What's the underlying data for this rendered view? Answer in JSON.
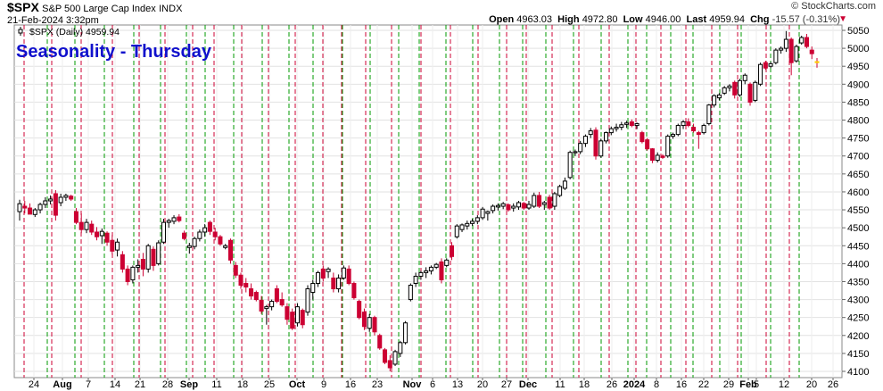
{
  "header": {
    "symbol": "$SPX",
    "description": "S&P 500 Large Cap Index",
    "exchange": "INDX",
    "brand": "© StockCharts.com",
    "datetime": "21-Feb-2024 3:32pm",
    "open_label": "Open",
    "open_value": "4963.03",
    "high_label": "High",
    "high_value": "4972.80",
    "low_label": "Low",
    "low_value": "4946.00",
    "last_label": "Last",
    "last_value": "4959.94",
    "chg_label": "Chg",
    "chg_value": "-15.57 (-0.31%)"
  },
  "chart_data": {
    "type": "candlestick",
    "title": "Seasonality - Thursday",
    "series_label": "$SPX (Daily) 4959.94",
    "y_ticks": [
      4100,
      4150,
      4200,
      4250,
      4300,
      4350,
      4400,
      4450,
      4500,
      4550,
      4600,
      4650,
      4700,
      4750,
      4800,
      4850,
      4900,
      4950,
      5000,
      5050
    ],
    "ylim": [
      4090,
      5065
    ],
    "colors": {
      "up": "#000000",
      "down": "#cc0033",
      "title": "#1010cc",
      "thursday_line": "#cc0033",
      "monday_line": "#009900",
      "last_marker": "#ffcc00"
    },
    "x_labels": [
      {
        "label": "24",
        "bold": false
      },
      {
        "label": "Aug",
        "bold": true
      },
      {
        "label": "7",
        "bold": false
      },
      {
        "label": "14",
        "bold": false
      },
      {
        "label": "21",
        "bold": false
      },
      {
        "label": "28",
        "bold": false
      },
      {
        "label": "Sep",
        "bold": true
      },
      {
        "label": "11",
        "bold": false
      },
      {
        "label": "18",
        "bold": false
      },
      {
        "label": "25",
        "bold": false
      },
      {
        "label": "Oct",
        "bold": true
      },
      {
        "label": "9",
        "bold": false
      },
      {
        "label": "16",
        "bold": false
      },
      {
        "label": "23",
        "bold": false
      },
      {
        "label": "Nov",
        "bold": true
      },
      {
        "label": "6",
        "bold": false
      },
      {
        "label": "13",
        "bold": false
      },
      {
        "label": "20",
        "bold": false
      },
      {
        "label": "27",
        "bold": false
      },
      {
        "label": "Dec",
        "bold": true
      },
      {
        "label": "11",
        "bold": false
      },
      {
        "label": "18",
        "bold": false
      },
      {
        "label": "26",
        "bold": false
      },
      {
        "label": "2024",
        "bold": true
      },
      {
        "label": "8",
        "bold": false
      },
      {
        "label": "16",
        "bold": false
      },
      {
        "label": "22",
        "bold": false
      },
      {
        "label": "29",
        "bold": false
      },
      {
        "label": "Feb",
        "bold": true
      },
      {
        "label": "5",
        "bold": false
      },
      {
        "label": "12",
        "bold": false
      },
      {
        "label": "20",
        "bold": false
      },
      {
        "label": "26",
        "bold": false
      }
    ],
    "candles": [
      {
        "o": 4545,
        "h": 4578,
        "l": 4520,
        "c": 4567
      },
      {
        "o": 4560,
        "h": 4575,
        "l": 4540,
        "c": 4555
      },
      {
        "o": 4555,
        "h": 4568,
        "l": 4540,
        "c": 4538
      },
      {
        "o": 4537,
        "h": 4555,
        "l": 4530,
        "c": 4550
      },
      {
        "o": 4550,
        "h": 4570,
        "l": 4540,
        "c": 4565
      },
      {
        "o": 4565,
        "h": 4585,
        "l": 4555,
        "c": 4575
      },
      {
        "o": 4575,
        "h": 4590,
        "l": 4565,
        "c": 4580
      },
      {
        "o": 4595,
        "h": 4605,
        "l": 4520,
        "c": 4535
      },
      {
        "o": 4570,
        "h": 4595,
        "l": 4560,
        "c": 4585
      },
      {
        "o": 4585,
        "h": 4595,
        "l": 4575,
        "c": 4590
      },
      {
        "o": 4588,
        "h": 4592,
        "l": 4575,
        "c": 4580
      },
      {
        "o": 4545,
        "h": 4555,
        "l": 4510,
        "c": 4515
      },
      {
        "o": 4515,
        "h": 4540,
        "l": 4485,
        "c": 4495
      },
      {
        "o": 4495,
        "h": 4525,
        "l": 4485,
        "c": 4515
      },
      {
        "o": 4510,
        "h": 4520,
        "l": 4480,
        "c": 4488
      },
      {
        "o": 4488,
        "h": 4502,
        "l": 4465,
        "c": 4475
      },
      {
        "o": 4478,
        "h": 4498,
        "l": 4455,
        "c": 4490
      },
      {
        "o": 4485,
        "h": 4490,
        "l": 4450,
        "c": 4460
      },
      {
        "o": 4465,
        "h": 4480,
        "l": 4425,
        "c": 4435
      },
      {
        "o": 4438,
        "h": 4470,
        "l": 4420,
        "c": 4460
      },
      {
        "o": 4425,
        "h": 4435,
        "l": 4375,
        "c": 4385
      },
      {
        "o": 4385,
        "h": 4395,
        "l": 4340,
        "c": 4350
      },
      {
        "o": 4355,
        "h": 4395,
        "l": 4345,
        "c": 4390
      },
      {
        "o": 4390,
        "h": 4412,
        "l": 4375,
        "c": 4395
      },
      {
        "o": 4412,
        "h": 4430,
        "l": 4365,
        "c": 4385
      },
      {
        "o": 4385,
        "h": 4455,
        "l": 4375,
        "c": 4450
      },
      {
        "o": 4440,
        "h": 4448,
        "l": 4380,
        "c": 4395
      },
      {
        "o": 4400,
        "h": 4465,
        "l": 4395,
        "c": 4458
      },
      {
        "o": 4460,
        "h": 4525,
        "l": 4455,
        "c": 4515
      },
      {
        "o": 4515,
        "h": 4525,
        "l": 4500,
        "c": 4520
      },
      {
        "o": 4518,
        "h": 4535,
        "l": 4510,
        "c": 4528
      },
      {
        "o": 4530,
        "h": 4538,
        "l": 4515,
        "c": 4520
      },
      {
        "o": 4485,
        "h": 4492,
        "l": 4465,
        "c": 4470
      },
      {
        "o": 4445,
        "h": 4458,
        "l": 4428,
        "c": 4450
      },
      {
        "o": 4448,
        "h": 4475,
        "l": 4440,
        "c": 4470
      },
      {
        "o": 4470,
        "h": 4495,
        "l": 4462,
        "c": 4488
      },
      {
        "o": 4488,
        "h": 4510,
        "l": 4475,
        "c": 4500
      },
      {
        "o": 4515,
        "h": 4520,
        "l": 4480,
        "c": 4490
      },
      {
        "o": 4488,
        "h": 4500,
        "l": 4465,
        "c": 4475
      },
      {
        "o": 4475,
        "h": 4480,
        "l": 4450,
        "c": 4455
      },
      {
        "o": 4445,
        "h": 4455,
        "l": 4440,
        "c": 4450
      },
      {
        "o": 4465,
        "h": 4470,
        "l": 4400,
        "c": 4410
      },
      {
        "o": 4395,
        "h": 4405,
        "l": 4360,
        "c": 4368
      },
      {
        "o": 4368,
        "h": 4375,
        "l": 4330,
        "c": 4340
      },
      {
        "o": 4345,
        "h": 4360,
        "l": 4320,
        "c": 4335
      },
      {
        "o": 4330,
        "h": 4345,
        "l": 4300,
        "c": 4310
      },
      {
        "o": 4320,
        "h": 4325,
        "l": 4295,
        "c": 4300
      },
      {
        "o": 4298,
        "h": 4310,
        "l": 4260,
        "c": 4268
      },
      {
        "o": 4275,
        "h": 4285,
        "l": 4230,
        "c": 4280
      },
      {
        "o": 4280,
        "h": 4300,
        "l": 4270,
        "c": 4295
      },
      {
        "o": 4330,
        "h": 4340,
        "l": 4290,
        "c": 4295
      },
      {
        "o": 4300,
        "h": 4320,
        "l": 4280,
        "c": 4285
      },
      {
        "o": 4280,
        "h": 4290,
        "l": 4230,
        "c": 4245
      },
      {
        "o": 4265,
        "h": 4275,
        "l": 4215,
        "c": 4220
      },
      {
        "o": 4235,
        "h": 4290,
        "l": 4225,
        "c": 4280
      },
      {
        "o": 4270,
        "h": 4275,
        "l": 4220,
        "c": 4230
      },
      {
        "o": 4265,
        "h": 4340,
        "l": 4255,
        "c": 4330
      },
      {
        "o": 4320,
        "h": 4355,
        "l": 4300,
        "c": 4345
      },
      {
        "o": 4345,
        "h": 4380,
        "l": 4335,
        "c": 4375
      },
      {
        "o": 4385,
        "h": 4395,
        "l": 4350,
        "c": 4360
      },
      {
        "o": 4378,
        "h": 4390,
        "l": 4360,
        "c": 4385
      },
      {
        "o": 4360,
        "h": 4375,
        "l": 4320,
        "c": 4330
      },
      {
        "o": 4330,
        "h": 4370,
        "l": 4320,
        "c": 4360
      },
      {
        "o": 4360,
        "h": 4395,
        "l": 4355,
        "c": 4388
      },
      {
        "o": 4385,
        "h": 4395,
        "l": 4340,
        "c": 4345
      },
      {
        "o": 4345,
        "h": 4350,
        "l": 4300,
        "c": 4305
      },
      {
        "o": 4295,
        "h": 4300,
        "l": 4245,
        "c": 4250
      },
      {
        "o": 4265,
        "h": 4275,
        "l": 4215,
        "c": 4225
      },
      {
        "o": 4220,
        "h": 4260,
        "l": 4210,
        "c": 4250
      },
      {
        "o": 4250,
        "h": 4255,
        "l": 4200,
        "c": 4210
      },
      {
        "o": 4200,
        "h": 4205,
        "l": 4160,
        "c": 4165
      },
      {
        "o": 4160,
        "h": 4165,
        "l": 4120,
        "c": 4125
      },
      {
        "o": 4130,
        "h": 4145,
        "l": 4100,
        "c": 4110
      },
      {
        "o": 4120,
        "h": 4160,
        "l": 4115,
        "c": 4155
      },
      {
        "o": 4150,
        "h": 4185,
        "l": 4140,
        "c": 4180
      },
      {
        "o": 4180,
        "h": 4240,
        "l": 4175,
        "c": 4235
      },
      {
        "o": 4300,
        "h": 4345,
        "l": 4295,
        "c": 4340
      },
      {
        "o": 4345,
        "h": 4375,
        "l": 4335,
        "c": 4365
      },
      {
        "o": 4365,
        "h": 4380,
        "l": 4355,
        "c": 4375
      },
      {
        "o": 4375,
        "h": 4390,
        "l": 4360,
        "c": 4380
      },
      {
        "o": 4380,
        "h": 4395,
        "l": 4370,
        "c": 4390
      },
      {
        "o": 4390,
        "h": 4402,
        "l": 4385,
        "c": 4398
      },
      {
        "o": 4405,
        "h": 4415,
        "l": 4345,
        "c": 4355
      },
      {
        "o": 4395,
        "h": 4415,
        "l": 4390,
        "c": 4410
      },
      {
        "o": 4450,
        "h": 4460,
        "l": 4410,
        "c": 4420
      },
      {
        "o": 4475,
        "h": 4510,
        "l": 4470,
        "c": 4505
      },
      {
        "o": 4495,
        "h": 4512,
        "l": 4488,
        "c": 4508
      },
      {
        "o": 4505,
        "h": 4520,
        "l": 4495,
        "c": 4512
      },
      {
        "o": 4512,
        "h": 4525,
        "l": 4505,
        "c": 4518
      },
      {
        "o": 4518,
        "h": 4535,
        "l": 4510,
        "c": 4528
      },
      {
        "o": 4528,
        "h": 4558,
        "l": 4522,
        "c": 4552
      },
      {
        "o": 4540,
        "h": 4548,
        "l": 4520,
        "c": 4545
      },
      {
        "o": 4548,
        "h": 4565,
        "l": 4540,
        "c": 4560
      },
      {
        "o": 4558,
        "h": 4568,
        "l": 4548,
        "c": 4562
      },
      {
        "o": 4560,
        "h": 4572,
        "l": 4552,
        "c": 4567
      },
      {
        "o": 4564,
        "h": 4568,
        "l": 4545,
        "c": 4550
      },
      {
        "o": 4555,
        "h": 4568,
        "l": 4545,
        "c": 4560
      },
      {
        "o": 4558,
        "h": 4575,
        "l": 4550,
        "c": 4570
      },
      {
        "o": 4568,
        "h": 4572,
        "l": 4550,
        "c": 4555
      },
      {
        "o": 4555,
        "h": 4575,
        "l": 4550,
        "c": 4565
      },
      {
        "o": 4560,
        "h": 4598,
        "l": 4555,
        "c": 4590
      },
      {
        "o": 4590,
        "h": 4600,
        "l": 4555,
        "c": 4560
      },
      {
        "o": 4565,
        "h": 4575,
        "l": 4550,
        "c": 4570
      },
      {
        "o": 4585,
        "h": 4592,
        "l": 4550,
        "c": 4555
      },
      {
        "o": 4560,
        "h": 4600,
        "l": 4550,
        "c": 4595
      },
      {
        "o": 4590,
        "h": 4620,
        "l": 4585,
        "c": 4615
      },
      {
        "o": 4610,
        "h": 4640,
        "l": 4605,
        "c": 4630
      },
      {
        "o": 4640,
        "h": 4715,
        "l": 4635,
        "c": 4710
      },
      {
        "o": 4710,
        "h": 4718,
        "l": 4700,
        "c": 4712
      },
      {
        "o": 4712,
        "h": 4742,
        "l": 4705,
        "c": 4735
      },
      {
        "o": 4735,
        "h": 4760,
        "l": 4725,
        "c": 4755
      },
      {
        "o": 4760,
        "h": 4778,
        "l": 4750,
        "c": 4770
      },
      {
        "o": 4772,
        "h": 4780,
        "l": 4690,
        "c": 4700
      },
      {
        "o": 4700,
        "h": 4748,
        "l": 4695,
        "c": 4742
      },
      {
        "o": 4742,
        "h": 4768,
        "l": 4735,
        "c": 4765
      },
      {
        "o": 4765,
        "h": 4782,
        "l": 4758,
        "c": 4776
      },
      {
        "o": 4776,
        "h": 4790,
        "l": 4768,
        "c": 4780
      },
      {
        "o": 4780,
        "h": 4795,
        "l": 4772,
        "c": 4787
      },
      {
        "o": 4788,
        "h": 4798,
        "l": 4778,
        "c": 4792
      },
      {
        "o": 4795,
        "h": 4802,
        "l": 4780,
        "c": 4785
      },
      {
        "o": 4785,
        "h": 4793,
        "l": 4775,
        "c": 4790
      },
      {
        "o": 4765,
        "h": 4770,
        "l": 4735,
        "c": 4740
      },
      {
        "o": 4745,
        "h": 4750,
        "l": 4715,
        "c": 4720
      },
      {
        "o": 4720,
        "h": 4722,
        "l": 4680,
        "c": 4688
      },
      {
        "o": 4688,
        "h": 4710,
        "l": 4682,
        "c": 4702
      },
      {
        "o": 4700,
        "h": 4705,
        "l": 4692,
        "c": 4696
      },
      {
        "o": 4700,
        "h": 4760,
        "l": 4695,
        "c": 4755
      },
      {
        "o": 4755,
        "h": 4765,
        "l": 4748,
        "c": 4760
      },
      {
        "o": 4760,
        "h": 4790,
        "l": 4755,
        "c": 4785
      },
      {
        "o": 4785,
        "h": 4800,
        "l": 4775,
        "c": 4795
      },
      {
        "o": 4795,
        "h": 4805,
        "l": 4780,
        "c": 4785
      },
      {
        "o": 4780,
        "h": 4790,
        "l": 4765,
        "c": 4770
      },
      {
        "o": 4765,
        "h": 4770,
        "l": 4720,
        "c": 4760
      },
      {
        "o": 4765,
        "h": 4790,
        "l": 4760,
        "c": 4785
      },
      {
        "o": 4790,
        "h": 4845,
        "l": 4785,
        "c": 4842
      },
      {
        "o": 4842,
        "h": 4872,
        "l": 4835,
        "c": 4868
      },
      {
        "o": 4862,
        "h": 4875,
        "l": 4855,
        "c": 4870
      },
      {
        "o": 4875,
        "h": 4895,
        "l": 4870,
        "c": 4890
      },
      {
        "o": 4890,
        "h": 4900,
        "l": 4880,
        "c": 4895
      },
      {
        "o": 4905,
        "h": 4910,
        "l": 4860,
        "c": 4870
      },
      {
        "o": 4870,
        "h": 4915,
        "l": 4865,
        "c": 4910
      },
      {
        "o": 4910,
        "h": 4930,
        "l": 4900,
        "c": 4925
      },
      {
        "o": 4900,
        "h": 4905,
        "l": 4840,
        "c": 4850
      },
      {
        "o": 4855,
        "h": 4910,
        "l": 4850,
        "c": 4905
      },
      {
        "o": 4900,
        "h": 4960,
        "l": 4895,
        "c": 4955
      },
      {
        "o": 4960,
        "h": 4965,
        "l": 4940,
        "c": 4945
      },
      {
        "o": 4950,
        "h": 4962,
        "l": 4945,
        "c": 4957
      },
      {
        "o": 4960,
        "h": 5000,
        "l": 4955,
        "c": 4995
      },
      {
        "o": 4995,
        "h": 5005,
        "l": 4985,
        "c": 5000
      },
      {
        "o": 5000,
        "h": 5048,
        "l": 4990,
        "c": 5025
      },
      {
        "o": 5025,
        "h": 5030,
        "l": 4925,
        "c": 4960
      },
      {
        "o": 4965,
        "h": 5010,
        "l": 4960,
        "c": 5005
      },
      {
        "o": 5015,
        "h": 5035,
        "l": 5010,
        "c": 5030
      },
      {
        "o": 5030,
        "h": 5040,
        "l": 5000,
        "c": 5005
      },
      {
        "o": 4995,
        "h": 5005,
        "l": 4970,
        "c": 4985
      },
      {
        "o": 4963,
        "h": 4973,
        "l": 4946,
        "c": 4960
      }
    ]
  }
}
